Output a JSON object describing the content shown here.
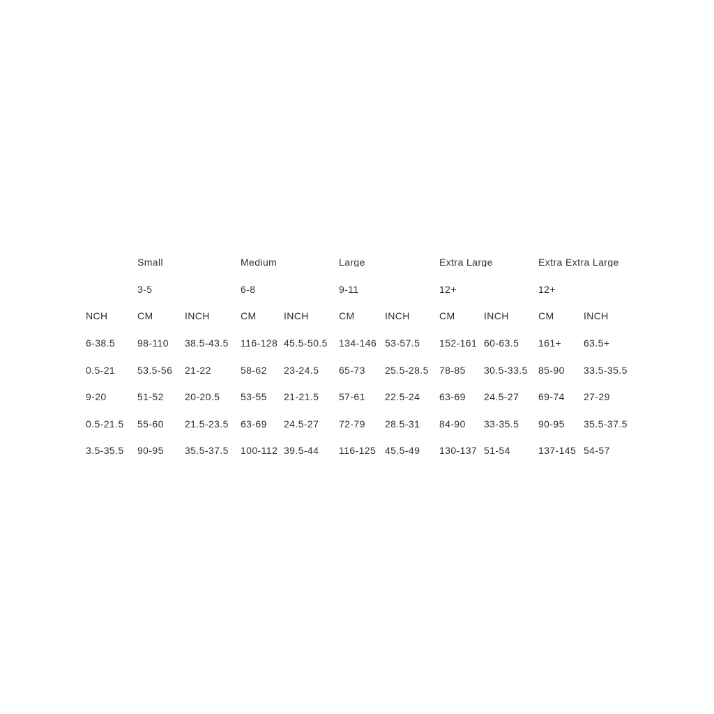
{
  "page": {
    "background_color": "#ffffff",
    "text_color": "#2f2f2f"
  },
  "chart_data": {
    "type": "table",
    "title": "",
    "sizes": [
      "Small",
      "Medium",
      "Large",
      "Extra Large",
      "Extra Extra Large"
    ],
    "ages": [
      "3-5",
      "6-8",
      "9-11",
      "12+",
      "12+"
    ],
    "unit_headers": [
      "NCH",
      "CM",
      "INCH",
      "CM",
      "INCH",
      "CM",
      "INCH",
      "CM",
      "INCH",
      "CM",
      "INCH"
    ],
    "rows": [
      [
        "6-38.5",
        "98-110",
        "38.5-43.5",
        "116-128",
        "45.5-50.5",
        "134-146",
        "53-57.5",
        "152-161",
        "60-63.5",
        "161+",
        "63.5+"
      ],
      [
        "0.5-21",
        "53.5-56",
        "21-22",
        "58-62",
        "23-24.5",
        "65-73",
        "25.5-28.5",
        "78-85",
        "30.5-33.5",
        "85-90",
        "33.5-35.5"
      ],
      [
        "9-20",
        "51-52",
        "20-20.5",
        "53-55",
        "21-21.5",
        "57-61",
        "22.5-24",
        "63-69",
        "24.5-27",
        "69-74",
        "27-29"
      ],
      [
        "0.5-21.5",
        "55-60",
        "21.5-23.5",
        "63-69",
        "24.5-27",
        "72-79",
        "28.5-31",
        "84-90",
        "33-35.5",
        "90-95",
        "35.5-37.5"
      ],
      [
        "3.5-35.5",
        "90-95",
        "35.5-37.5",
        "100-112",
        "39.5-44",
        "116-125",
        "45.5-49",
        "130-137",
        "51-54",
        "137-145",
        "54-57"
      ]
    ],
    "layout": {
      "first_column_clipped_at_left_edge": true,
      "grid_lines": "none",
      "header_rows": [
        "size names",
        "age ranges",
        "unit labels"
      ]
    }
  }
}
